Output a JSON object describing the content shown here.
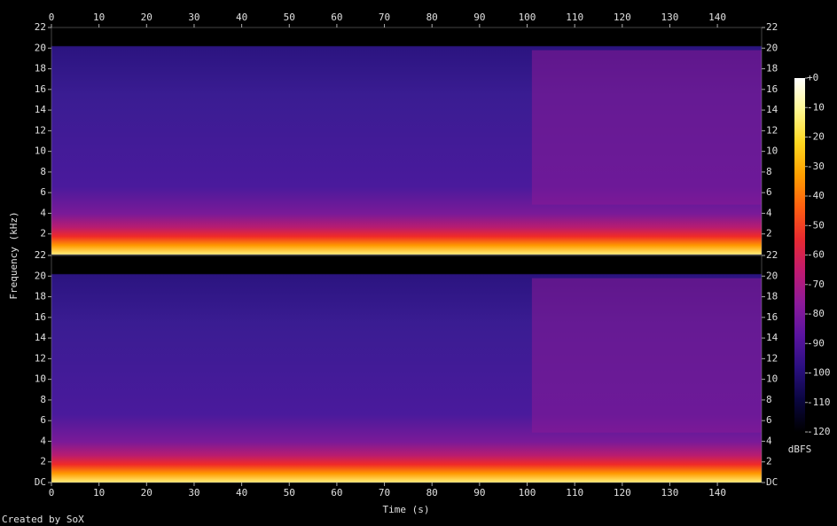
{
  "chart_data": {
    "type": "spectrogram",
    "xlabel": "Time (s)",
    "ylabel": "Frequency (kHz)",
    "footer": "Created by SoX",
    "colorbar_label": "dBFS",
    "xlim": [
      0,
      149.3
    ],
    "xticks": [
      0,
      10,
      20,
      30,
      40,
      50,
      60,
      70,
      80,
      90,
      100,
      110,
      120,
      130,
      140
    ],
    "channels": [
      {
        "ylim": [
          0,
          22
        ],
        "yticks": [
          2,
          4,
          6,
          8,
          10,
          12,
          14,
          16,
          18,
          20,
          22
        ]
      },
      {
        "ylim": [
          0,
          22
        ],
        "yticks": [
          {
            "value": 0,
            "label": "DC"
          },
          2,
          4,
          6,
          8,
          10,
          12,
          14,
          16,
          18,
          20,
          22
        ]
      }
    ],
    "zlim": [
      -120,
      0
    ],
    "zticks": [
      {
        "value": 0,
        "label": "+0"
      },
      -10,
      -20,
      -30,
      -40,
      -50,
      -60,
      -70,
      -80,
      -90,
      -100,
      -110,
      -120
    ],
    "colormap": [
      "#000000",
      "#0a0640",
      "#2a0f80",
      "#5a13a0",
      "#8c1a9a",
      "#c01a70",
      "#e82a30",
      "#ff6010",
      "#ffa000",
      "#ffd820",
      "#fff890",
      "#ffffff"
    ]
  }
}
